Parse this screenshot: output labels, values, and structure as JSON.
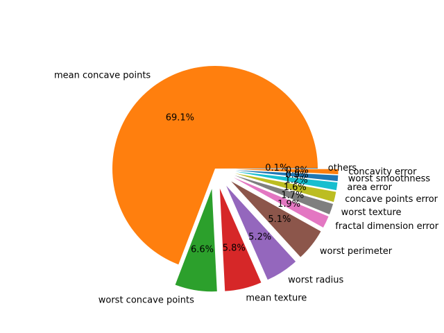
{
  "chart_data": {
    "type": "pie",
    "title": "",
    "slices": [
      {
        "label": "others",
        "value": 0.1,
        "pct_label": "0.1%",
        "color": "#1f77b4",
        "explode": 0.0
      },
      {
        "label": "mean concave points",
        "value": 69.1,
        "pct_label": "69.1%",
        "color": "#ff7f0e",
        "explode": 0.0
      },
      {
        "label": "worst concave points",
        "value": 6.6,
        "pct_label": "6.6%",
        "color": "#2ca02c",
        "explode": 0.2
      },
      {
        "label": "mean texture",
        "value": 5.8,
        "pct_label": "5.8%",
        "color": "#d62728",
        "explode": 0.2
      },
      {
        "label": "worst radius",
        "value": 5.2,
        "pct_label": "5.2%",
        "color": "#9467bd",
        "explode": 0.2
      },
      {
        "label": "worst perimeter",
        "value": 5.1,
        "pct_label": "5.1%",
        "color": "#8c564b",
        "explode": 0.2
      },
      {
        "label": "fractal dimension error",
        "value": 1.9,
        "pct_label": "1.9%",
        "color": "#e377c2",
        "explode": 0.2
      },
      {
        "label": "worst texture",
        "value": 1.7,
        "pct_label": "1.7%",
        "color": "#7f7f7f",
        "explode": 0.2
      },
      {
        "label": "concave points error",
        "value": 1.6,
        "pct_label": "1.6%",
        "color": "#bcbd22",
        "explode": 0.2
      },
      {
        "label": "area error",
        "value": 1.2,
        "pct_label": "1.2%",
        "color": "#17becf",
        "explode": 0.2
      },
      {
        "label": "worst smoothness",
        "value": 0.9,
        "pct_label": "0.9%",
        "color": "#1f77b4",
        "explode": 0.2
      },
      {
        "label": "concavity error",
        "value": 0.8,
        "pct_label": "0.8%",
        "color": "#ff7f0e",
        "explode": 0.2
      }
    ]
  }
}
